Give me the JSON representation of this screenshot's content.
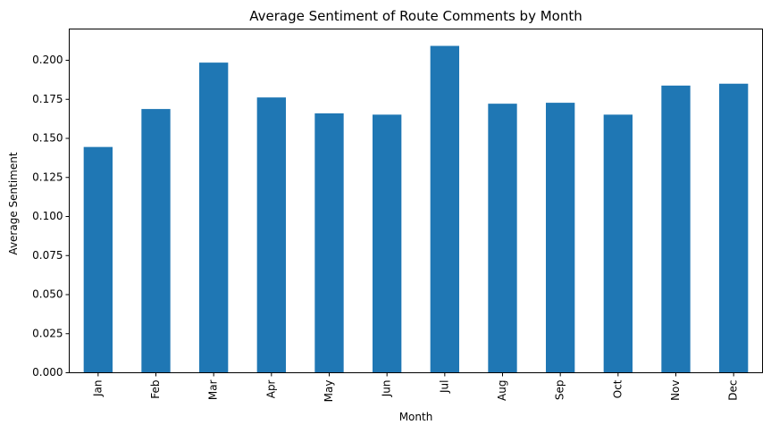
{
  "chart_data": {
    "type": "bar",
    "title": "Average Sentiment of Route Comments by Month",
    "xlabel": "Month",
    "ylabel": "Average Sentiment",
    "categories": [
      "Jan",
      "Feb",
      "Mar",
      "Apr",
      "May",
      "Jun",
      "Jul",
      "Aug",
      "Sep",
      "Oct",
      "Nov",
      "Dec"
    ],
    "values": [
      0.1445,
      0.1688,
      0.1985,
      0.1762,
      0.166,
      0.1652,
      0.2092,
      0.1722,
      0.1728,
      0.1652,
      0.1838,
      0.185
    ],
    "ylim": [
      0,
      0.22
    ],
    "yticks": [
      "0.000",
      "0.025",
      "0.050",
      "0.075",
      "0.100",
      "0.125",
      "0.150",
      "0.175",
      "0.200"
    ],
    "bar_color": "#1f77b4",
    "grid": false,
    "legend": false
  }
}
